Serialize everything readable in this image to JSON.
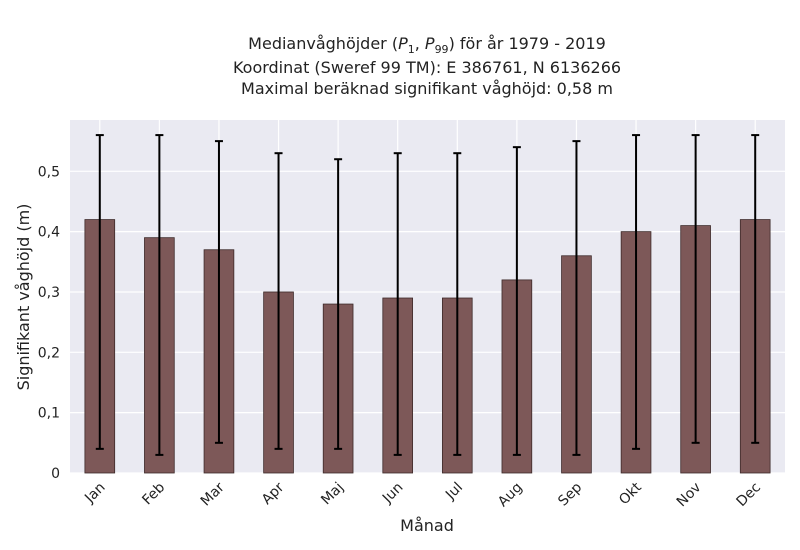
{
  "chart_data": {
    "type": "bar",
    "title_lines": [
      "Medianvåghöjder (P1, P99) för år 1979 - 2019",
      "Koordinat (Sweref 99 TM): E 386761, N 6136266",
      "Maximal beräknad signifikant våghöjd: 0,58 m"
    ],
    "xlabel": "Månad",
    "ylabel": "Signifikant våghöjd (m)",
    "categories": [
      "Jan",
      "Feb",
      "Mar",
      "Apr",
      "Maj",
      "Jun",
      "Jul",
      "Aug",
      "Sep",
      "Okt",
      "Nov",
      "Dec"
    ],
    "values": [
      0.42,
      0.39,
      0.37,
      0.3,
      0.28,
      0.29,
      0.29,
      0.32,
      0.36,
      0.4,
      0.41,
      0.42
    ],
    "p1": [
      0.04,
      0.03,
      0.05,
      0.04,
      0.04,
      0.03,
      0.03,
      0.03,
      0.03,
      0.04,
      0.05,
      0.05
    ],
    "p99": [
      0.56,
      0.56,
      0.55,
      0.53,
      0.52,
      0.53,
      0.53,
      0.54,
      0.55,
      0.56,
      0.56,
      0.56
    ],
    "yticks": [
      0,
      0.1,
      0.2,
      0.3,
      0.4,
      0.5
    ],
    "ytick_labels": [
      "0",
      "0,1",
      "0,2",
      "0,3",
      "0,4",
      "0,5"
    ],
    "ylim": [
      0,
      0.585
    ],
    "grid": true,
    "colors": {
      "bar": "#7d5858",
      "bar_edge": "#3d2a2a",
      "errorbar": "#000000",
      "plot_bg": "#eaeaf2",
      "grid": "#ffffff"
    }
  }
}
